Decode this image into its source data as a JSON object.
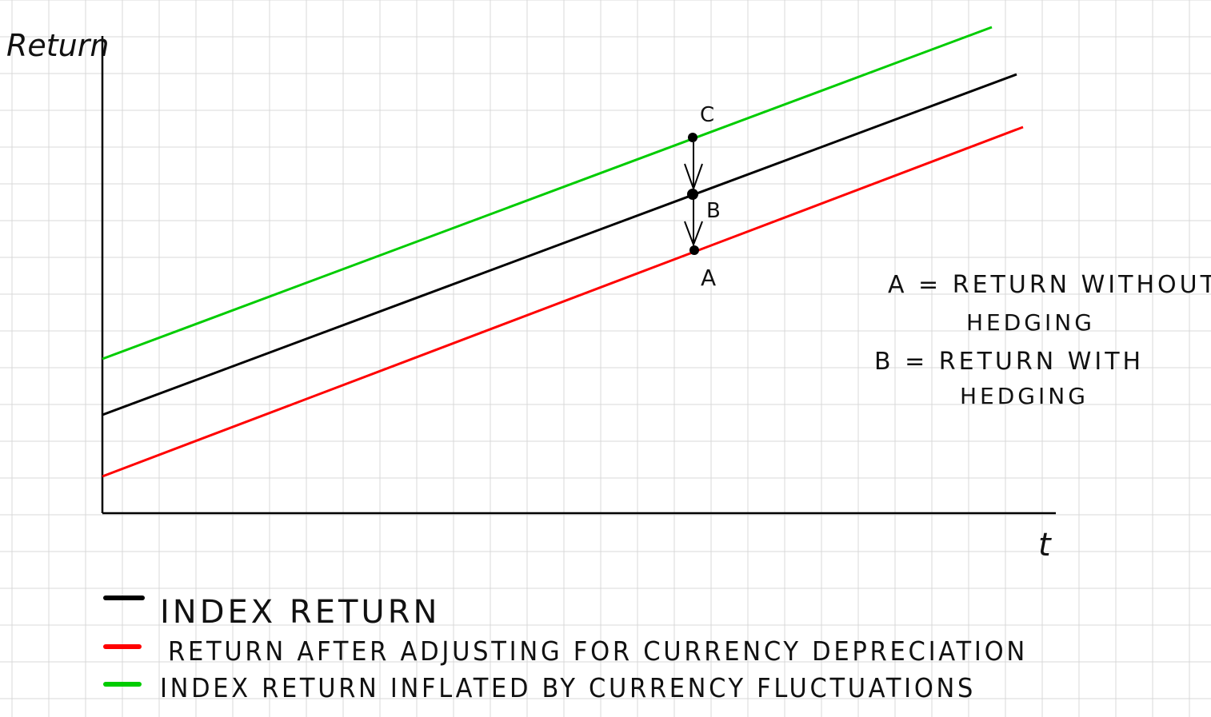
{
  "axes": {
    "y_label": "Return",
    "x_label": "t"
  },
  "points": [
    {
      "id": "C",
      "label": "C",
      "on_series": "green"
    },
    {
      "id": "B",
      "label": "B",
      "on_series": "black"
    },
    {
      "id": "A",
      "label": "A",
      "on_series": "red"
    }
  ],
  "annotations": {
    "line1": "A = RETURN WITHOUT",
    "line2": "HEDGING",
    "line3": "B = RETURN WITH",
    "line4": "HEDGING"
  },
  "legend": [
    {
      "key": "black",
      "color": "#000000",
      "label": "INDEX RETURN"
    },
    {
      "key": "red",
      "color": "#ff0000",
      "label": "RETURN AFTER ADJUSTING FOR CURRENCY DEPRECIATION"
    },
    {
      "key": "green",
      "color": "#00cc00",
      "label": "INDEX RETURN INFLATED BY CURRENCY FLUCTUATIONS"
    }
  ],
  "colors": {
    "grid": "#d9d9d9",
    "axis": "#000000",
    "black_series": "#000000",
    "red_series": "#ff0000",
    "green_series": "#00cc00"
  }
}
